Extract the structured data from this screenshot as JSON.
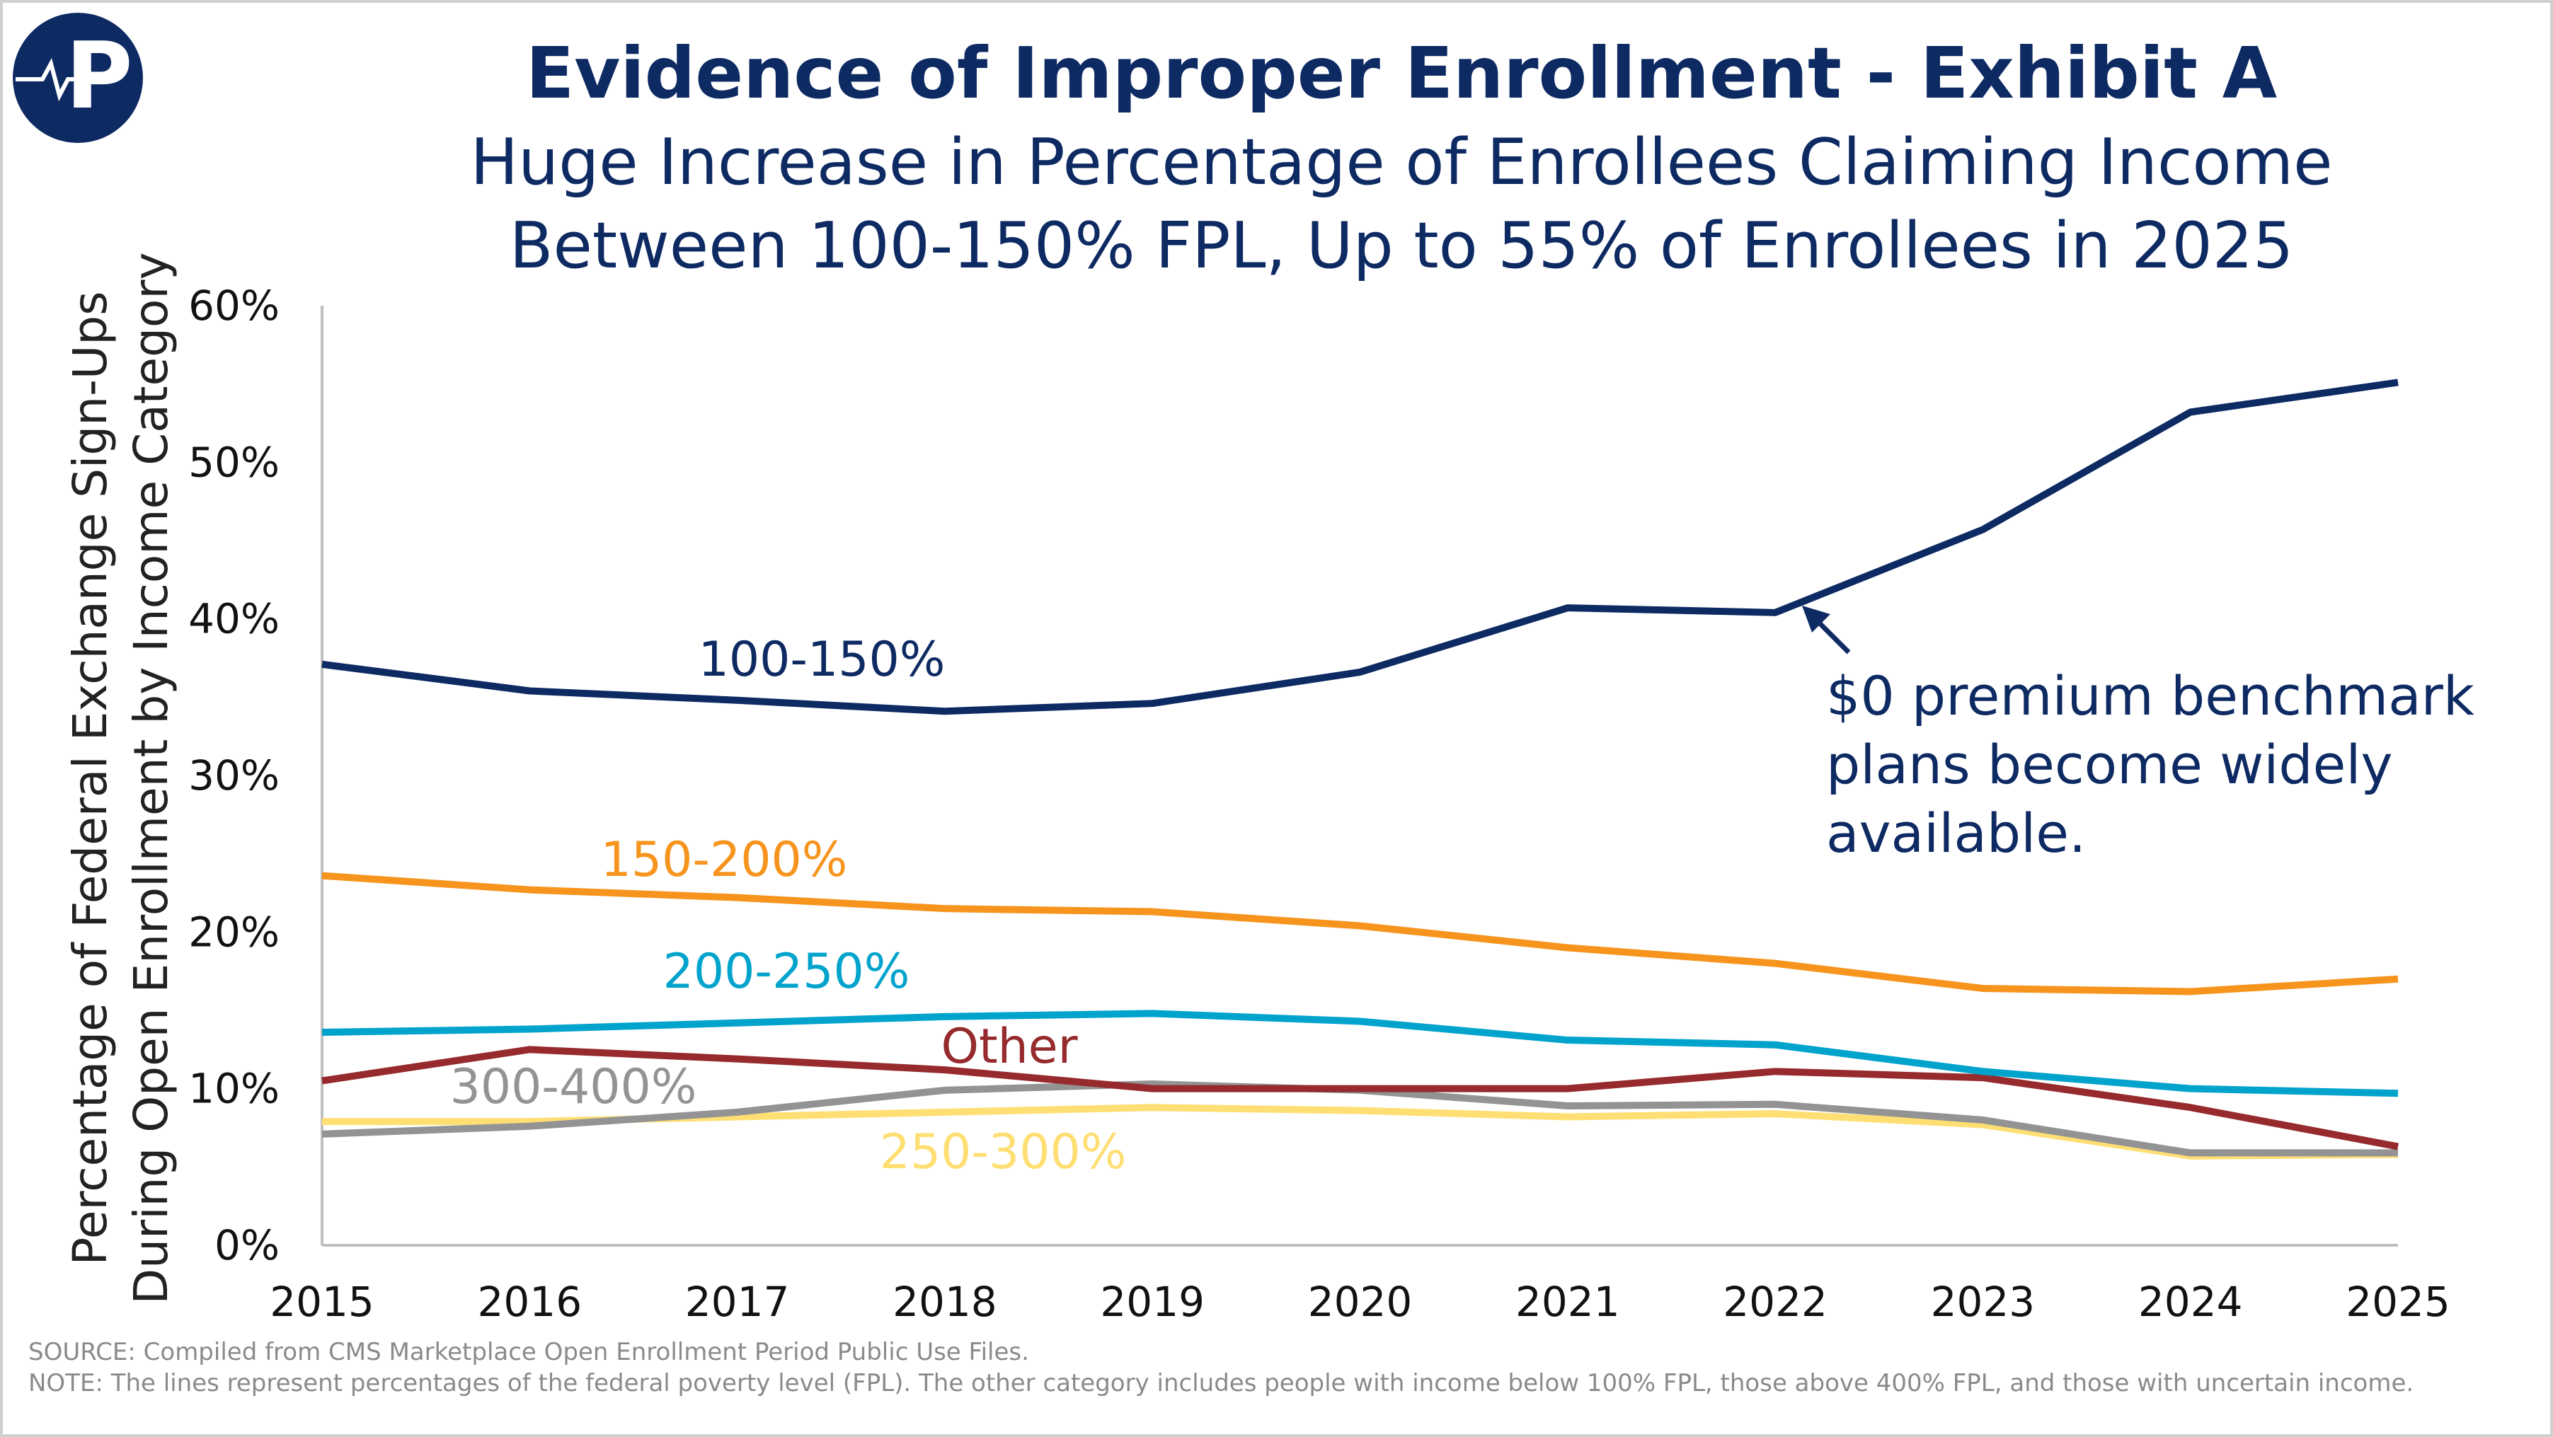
{
  "logo": {
    "letter": "P"
  },
  "title": "Evidence of Improper Enrollment - Exhibit A",
  "subtitle_lines": [
    "Huge Increase in Percentage of Enrollees Claiming Income",
    "Between 100-150% FPL, Up to 55% of Enrollees in 2025"
  ],
  "annotation_lines": [
    "$0 premium benchmark",
    "plans become widely",
    "available."
  ],
  "notes": [
    "SOURCE: Compiled from CMS Marketplace Open Enrollment Period Public Use Files.",
    "NOTE: The lines represent percentages of the federal poverty level (FPL). The other category includes people with income below 100% FPL, those above 400% FPL, and those with uncertain income."
  ],
  "colors": {
    "title": "#0d2a63",
    "axis": "#bfbfbf"
  },
  "chart_data": {
    "type": "line",
    "title": "Evidence of Improper Enrollment - Exhibit A",
    "ylabel_lines": [
      "Percentage of Federal Exchange Sign-Ups",
      "During Open Enrollment by Income Category"
    ],
    "xlabel": "",
    "x": [
      2015,
      2016,
      2017,
      2018,
      2019,
      2020,
      2021,
      2022,
      2023,
      2024,
      2025
    ],
    "x_tick_labels": [
      "2015",
      "2016",
      "2017",
      "2018",
      "2019",
      "2020",
      "2021",
      "2022",
      "2023",
      "2024",
      "2025"
    ],
    "ylim": [
      0,
      60
    ],
    "y_tick_labels": [
      "0%",
      "10%",
      "20%",
      "30%",
      "40%",
      "50%",
      "60%"
    ],
    "y_ticks": [
      0,
      10,
      20,
      30,
      40,
      50,
      60
    ],
    "grid": false,
    "legend": "inline labels",
    "series": [
      {
        "name": "100-150%",
        "color": "#0d2a63",
        "values": [
          37.1,
          35.4,
          34.8,
          34.1,
          34.6,
          36.6,
          40.7,
          40.4,
          45.7,
          53.2,
          55.1
        ]
      },
      {
        "name": "150-200%",
        "color": "#f7941d",
        "values": [
          23.6,
          22.7,
          22.2,
          21.5,
          21.3,
          20.4,
          19.0,
          18.0,
          16.4,
          16.2,
          17.0
        ]
      },
      {
        "name": "200-250%",
        "color": "#00a3cc",
        "values": [
          13.6,
          13.8,
          14.2,
          14.6,
          14.8,
          14.3,
          13.1,
          12.8,
          11.1,
          10.0,
          9.7
        ]
      },
      {
        "name": "Other",
        "color": "#962a2d",
        "values": [
          10.5,
          12.5,
          11.9,
          11.2,
          10.0,
          10.0,
          10.0,
          11.1,
          10.7,
          8.8,
          6.3
        ]
      },
      {
        "name": "300-400%",
        "color": "#939393",
        "values": [
          7.1,
          7.6,
          8.5,
          9.9,
          10.3,
          9.9,
          8.9,
          9.0,
          8.0,
          5.9,
          5.9
        ]
      },
      {
        "name": "250-300%",
        "color": "#ffdf73",
        "values": [
          7.9,
          7.9,
          8.2,
          8.5,
          8.8,
          8.6,
          8.2,
          8.4,
          7.7,
          5.7,
          5.8
        ]
      }
    ]
  }
}
